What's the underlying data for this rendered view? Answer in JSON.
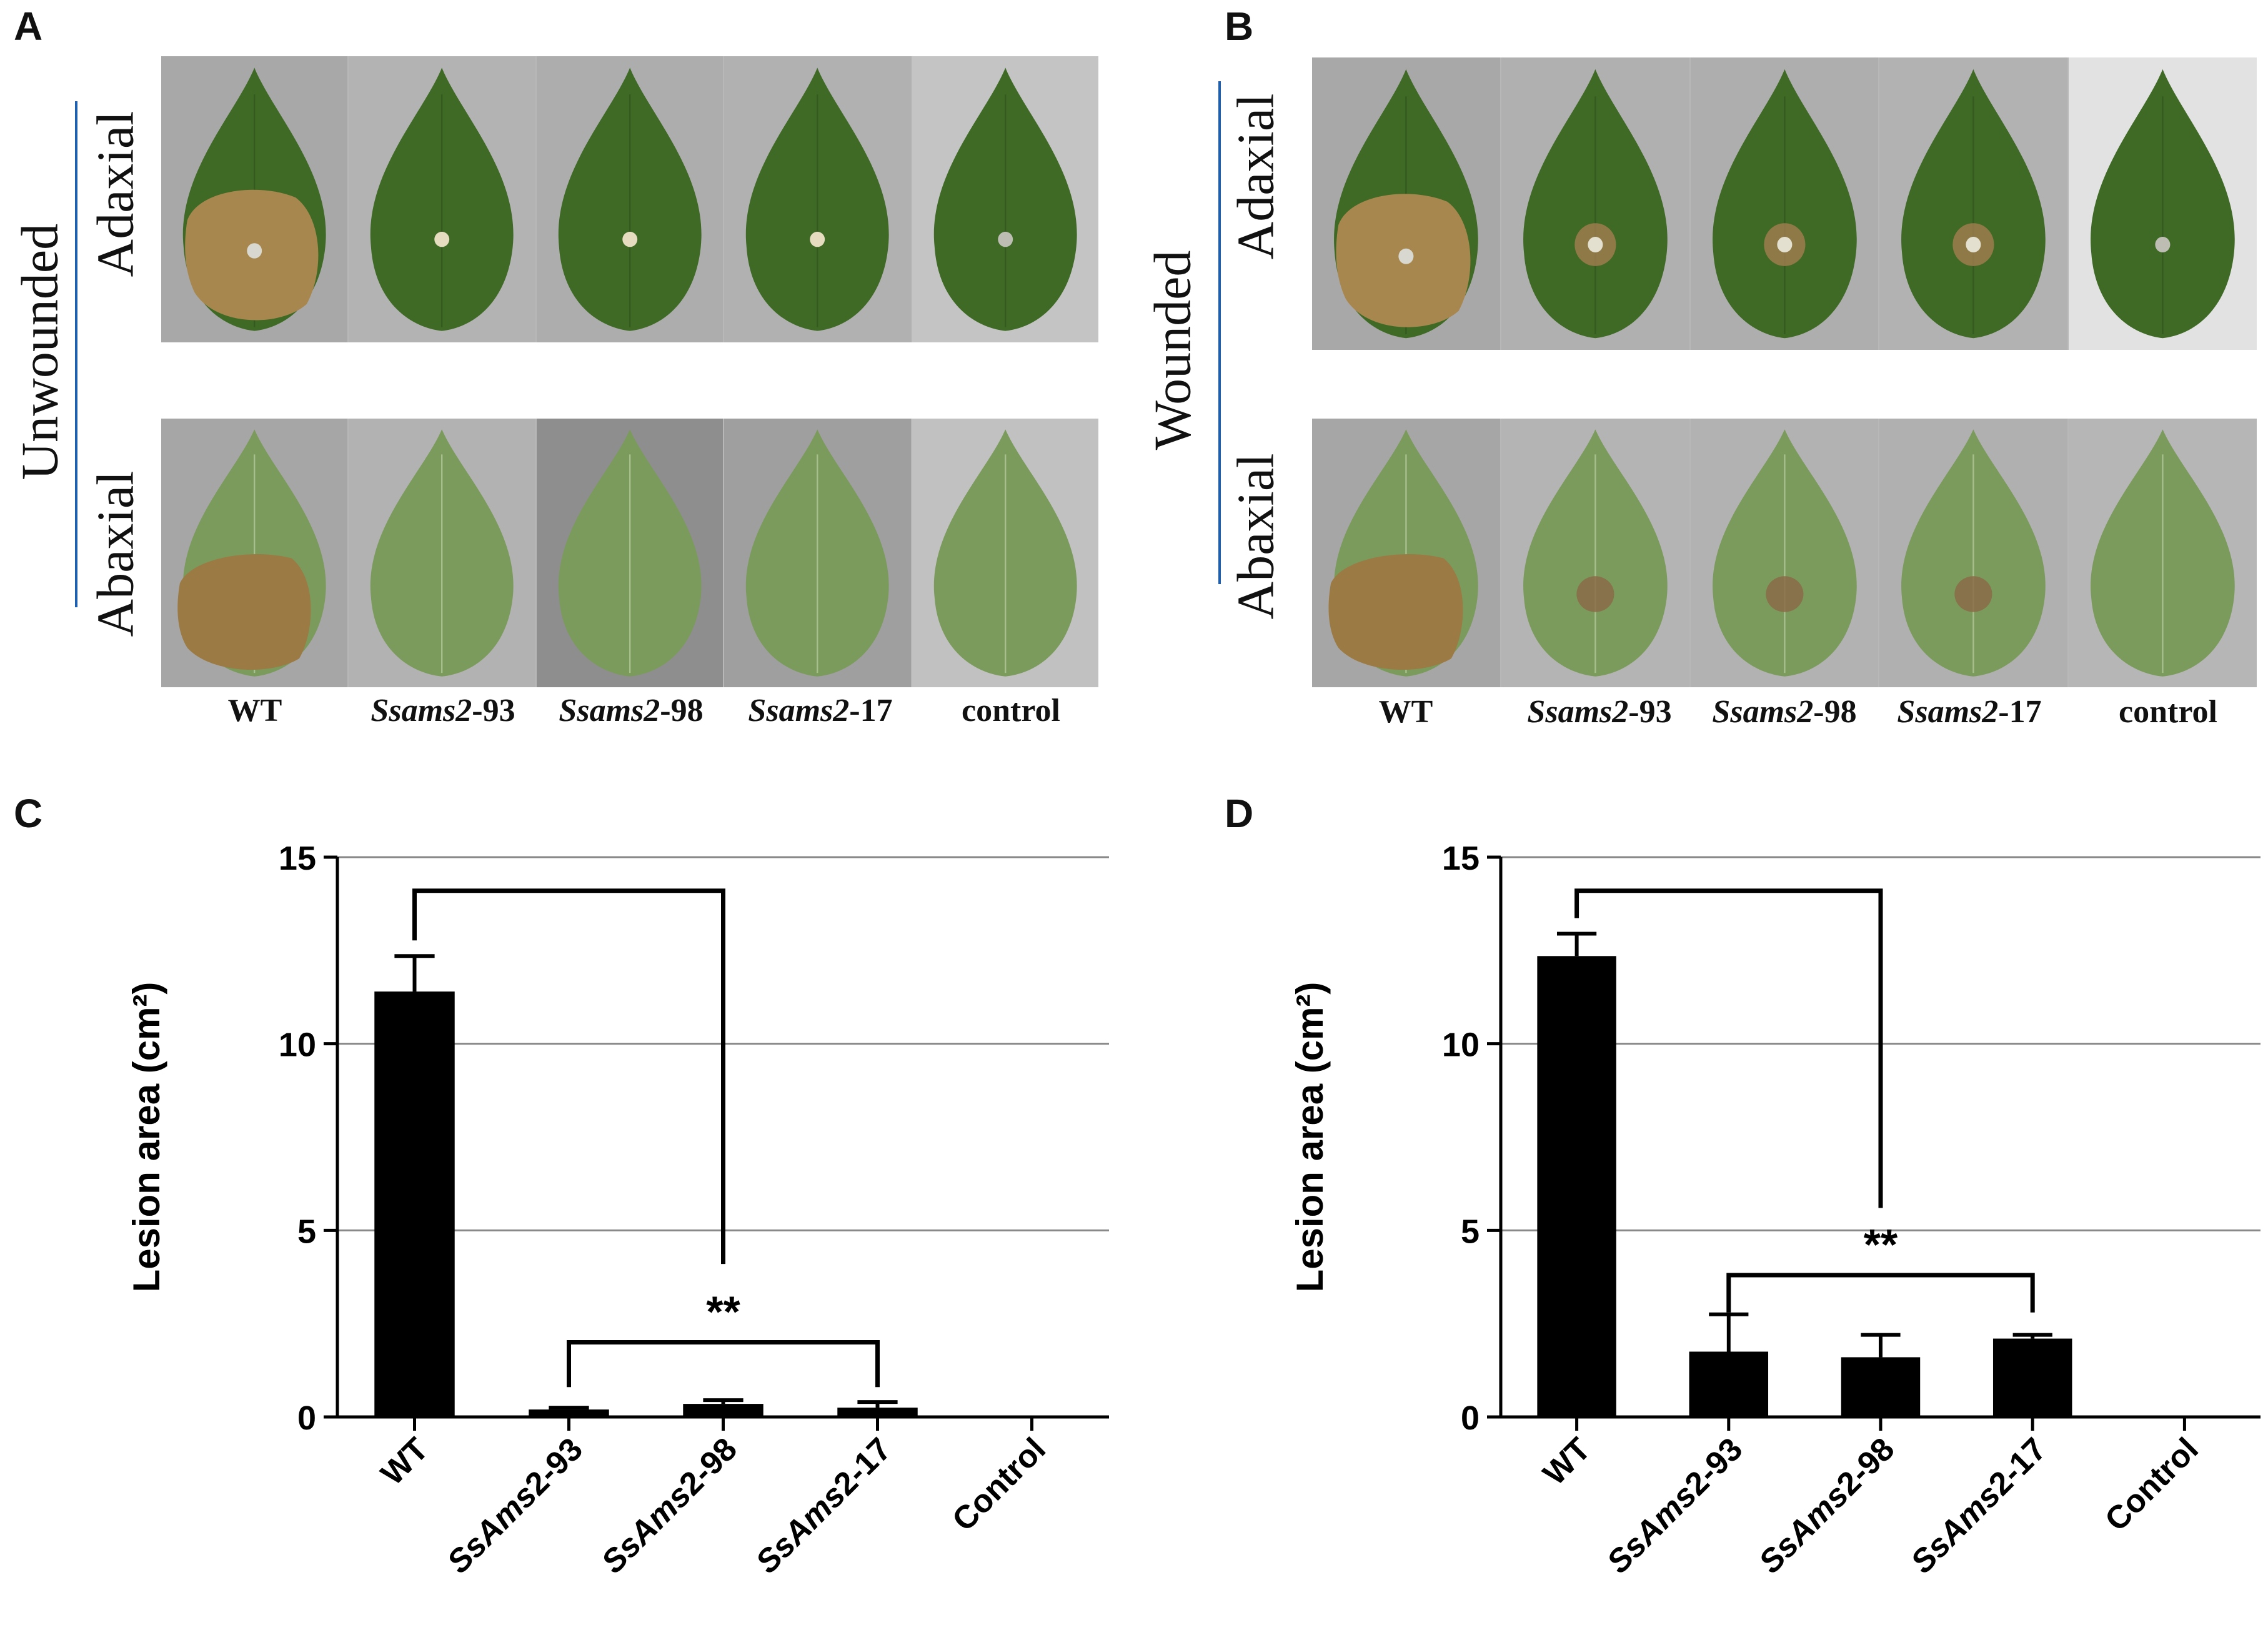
{
  "panels": {
    "A": "A",
    "B": "B",
    "C": "C",
    "D": "D"
  },
  "panel_a": {
    "group_label": "Unwounded",
    "top_row_label": "Adaxial",
    "bottom_row_label": "Abaxial",
    "captions": [
      {
        "italic": "",
        "plain": "WT"
      },
      {
        "italic": "Ssams2",
        "plain": "-93"
      },
      {
        "italic": "Ssams2",
        "plain": "-98"
      },
      {
        "italic": "Ssams2",
        "plain": "-17"
      },
      {
        "italic": "",
        "plain": "control"
      }
    ]
  },
  "panel_b": {
    "group_label": "Wounded",
    "top_row_label": "Adaxial",
    "bottom_row_label": "Abaxial",
    "captions": [
      {
        "italic": "",
        "plain": "WT"
      },
      {
        "italic": "Ssams2",
        "plain": "-93"
      },
      {
        "italic": "Ssams2",
        "plain": "-98"
      },
      {
        "italic": "Ssams2",
        "plain": "-17"
      },
      {
        "italic": "",
        "plain": "control"
      }
    ]
  },
  "colors": {
    "leaf_dark": "#3f6a26",
    "leaf_light": "#6e9a48",
    "lesion": "#a8874e",
    "bar": "#000000",
    "grid": "#888888",
    "background_photo": "#a9a9a9"
  },
  "chart_data": [
    {
      "panel": "C",
      "type": "bar",
      "categories": [
        "WT",
        "SsAms2-93",
        "SsAms2-98",
        "SsAms2-17",
        "Control"
      ],
      "values": [
        11.4,
        0.2,
        0.35,
        0.25,
        0
      ],
      "errors": [
        0.95,
        0.05,
        0.1,
        0.15,
        0
      ],
      "ylabel": "Lesion area (cm²)",
      "ylim": [
        0,
        15
      ],
      "yticks": [
        0,
        5,
        10,
        15
      ],
      "grid": true,
      "significance": {
        "label": "**",
        "from": "WT",
        "to_group": [
          "SsAms2-93",
          "SsAms2-17"
        ]
      }
    },
    {
      "panel": "D",
      "type": "bar",
      "categories": [
        "WT",
        "SsAms2-93",
        "SsAms2-98",
        "SsAms2-17",
        "Control"
      ],
      "values": [
        12.35,
        1.75,
        1.6,
        2.1,
        0
      ],
      "errors": [
        0.6,
        1.0,
        0.6,
        0.1,
        0
      ],
      "ylabel": "Lesion area (cm²)",
      "ylim": [
        0,
        15
      ],
      "yticks": [
        0,
        5,
        10,
        15
      ],
      "grid": true,
      "significance": {
        "label": "**",
        "from": "WT",
        "to_group": [
          "SsAms2-93",
          "SsAms2-17"
        ]
      }
    }
  ]
}
